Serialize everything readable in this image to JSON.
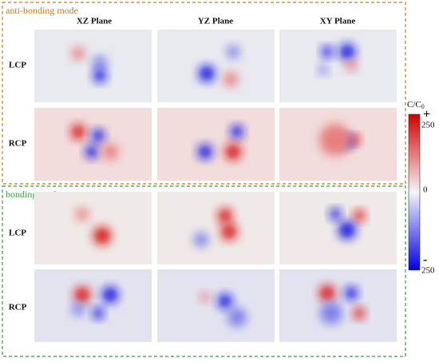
{
  "groups": [
    {
      "title": "anti-bonding mode",
      "rows": [
        "LCP",
        "RCP"
      ]
    },
    {
      "title": "bonding mode",
      "rows": [
        "LCP",
        "RCP"
      ]
    }
  ],
  "columns": [
    "XZ Plane",
    "YZ Plane",
    "XY Plane"
  ],
  "colorbar": {
    "title": "C/C",
    "title_sub": "0",
    "max_sign": "+",
    "max": "250",
    "mid": "0",
    "min_sign": "-",
    "min": "250"
  }
}
